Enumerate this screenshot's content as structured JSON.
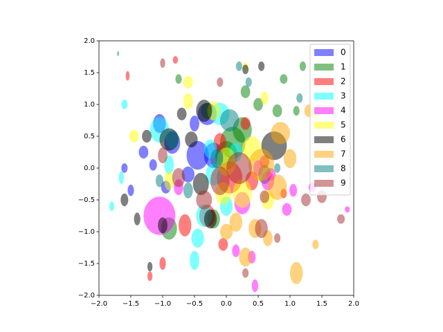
{
  "chart_data": {
    "type": "ellipse-scatter",
    "xlim": [
      -2,
      2
    ],
    "ylim": [
      -2,
      2
    ],
    "xticks": [
      {
        "value": -2,
        "label": "−2.0"
      },
      {
        "value": -1.5,
        "label": "−1.5"
      },
      {
        "value": -1,
        "label": "−1.0"
      },
      {
        "value": -0.5,
        "label": "−0.5"
      },
      {
        "value": 0,
        "label": "0.0"
      },
      {
        "value": 0.5,
        "label": "0.5"
      },
      {
        "value": 1,
        "label": "1.0"
      },
      {
        "value": 1.5,
        "label": "1.5"
      },
      {
        "value": 2,
        "label": "2.0"
      }
    ],
    "yticks": [
      {
        "value": -2,
        "label": "−2.0"
      },
      {
        "value": -1.5,
        "label": "−1.5"
      },
      {
        "value": -1,
        "label": "−1.0"
      },
      {
        "value": -0.5,
        "label": "−0.5"
      },
      {
        "value": 0,
        "label": "0.0"
      },
      {
        "value": 0.5,
        "label": "0.5"
      },
      {
        "value": 1,
        "label": "1.0"
      },
      {
        "value": 1.5,
        "label": "1.5"
      },
      {
        "value": 2,
        "label": "2.0"
      }
    ],
    "alpha": 0.5,
    "legend": "upper right",
    "series": [
      {
        "name": "0",
        "color": "#0000ff",
        "x": [
          -0.45,
          -0.3,
          -0.85,
          -1.05,
          -1.3,
          -1.6,
          -0.6,
          -1.5,
          -0.2,
          -0.5,
          -1.15,
          -0.95
        ],
        "values": [
          0.2,
          0.85,
          0.4,
          0.7,
          0.25,
          0.0,
          -0.1,
          -0.35,
          0.2,
          0.7,
          0.05,
          -0.3
        ],
        "width": [
          0.35,
          0.3,
          0.25,
          0.2,
          0.15,
          0.1,
          0.2,
          0.1,
          0.3,
          0.15,
          0.12,
          0.15
        ],
        "height": [
          0.45,
          0.35,
          0.35,
          0.3,
          0.2,
          0.15,
          0.25,
          0.18,
          0.4,
          0.25,
          0.18,
          0.2
        ]
      },
      {
        "name": "1",
        "color": "#008000",
        "x": [
          0.1,
          0.25,
          0.0,
          -0.3,
          0.5,
          0.8,
          0.9,
          1.1,
          1.2,
          -0.9,
          0.3,
          -0.2,
          0.6,
          -0.75
        ],
        "values": [
          0.4,
          0.6,
          0.2,
          0.9,
          1.0,
          0.9,
          1.4,
          0.9,
          1.6,
          -0.95,
          1.2,
          -0.8,
          -0.1,
          1.4
        ],
        "width": [
          0.4,
          0.3,
          0.35,
          0.2,
          0.15,
          0.15,
          0.12,
          0.1,
          0.1,
          0.25,
          0.15,
          0.2,
          0.2,
          0.1
        ],
        "height": [
          0.5,
          0.4,
          0.45,
          0.25,
          0.2,
          0.2,
          0.15,
          0.15,
          0.15,
          0.35,
          0.2,
          0.3,
          0.3,
          0.15
        ]
      },
      {
        "name": "2",
        "color": "#ff0000",
        "x": [
          0.05,
          -0.3,
          0.4,
          -0.65,
          -0.05,
          0.3,
          -1.0,
          -0.1,
          0.6,
          -1.2,
          0.9,
          -0.8,
          -1.55
        ],
        "values": [
          -0.15,
          -0.75,
          -0.2,
          -0.9,
          -1.2,
          0.7,
          -1.5,
          0.4,
          0.1,
          -1.7,
          -0.4,
          1.7,
          1.45
        ],
        "width": [
          0.4,
          0.25,
          0.2,
          0.2,
          0.15,
          0.15,
          0.1,
          0.2,
          0.15,
          0.08,
          0.1,
          0.08,
          0.06
        ],
        "height": [
          0.5,
          0.35,
          0.3,
          0.35,
          0.2,
          0.2,
          0.2,
          0.3,
          0.2,
          0.15,
          0.15,
          0.12,
          0.15
        ]
      },
      {
        "name": "3",
        "color": "#00ffff",
        "x": [
          -0.1,
          -0.35,
          -1.05,
          -0.2,
          0.0,
          -0.5,
          -1.6,
          -0.45,
          -1.8,
          -0.9,
          -1.65,
          0.15,
          -0.25
        ],
        "values": [
          0.85,
          -0.75,
          0.6,
          -0.1,
          -0.6,
          -1.45,
          1.0,
          -1.1,
          -0.6,
          0.05,
          -0.15,
          0.25,
          0.3
        ],
        "width": [
          0.3,
          0.25,
          0.3,
          0.25,
          0.2,
          0.15,
          0.1,
          0.2,
          0.08,
          0.15,
          0.08,
          0.2,
          0.2
        ],
        "height": [
          0.35,
          0.35,
          0.4,
          0.35,
          0.3,
          0.3,
          0.15,
          0.3,
          0.15,
          0.3,
          0.2,
          0.3,
          0.3
        ]
      },
      {
        "name": "4",
        "color": "#ff00ff",
        "x": [
          -1.05,
          0.65,
          0.25,
          0.4,
          0.95,
          1.35,
          0.45,
          0.7,
          1.9,
          0.5,
          -0.75,
          0.15,
          1.05
        ],
        "values": [
          -0.75,
          -0.2,
          -0.55,
          -1.4,
          -0.65,
          -0.3,
          -1.85,
          -0.1,
          -0.65,
          0.0,
          -0.3,
          -1.3,
          -0.35
        ],
        "width": [
          0.5,
          0.2,
          0.25,
          0.12,
          0.15,
          0.12,
          0.1,
          0.15,
          0.08,
          0.15,
          0.15,
          0.12,
          0.12
        ],
        "height": [
          0.6,
          0.3,
          0.35,
          0.2,
          0.2,
          0.15,
          0.2,
          0.2,
          0.1,
          0.25,
          0.25,
          0.2,
          0.2
        ]
      },
      {
        "name": "5",
        "color": "#ffff00",
        "x": [
          0.0,
          0.4,
          -0.2,
          -0.6,
          1.4,
          -1.45,
          0.25,
          -0.9,
          0.6,
          -0.05,
          0.3,
          -0.6,
          0.65
        ],
        "values": [
          0.1,
          0.3,
          0.9,
          1.35,
          0.85,
          0.5,
          -0.4,
          -0.2,
          1.1,
          -0.4,
          1.6,
          1.05,
          -0.5
        ],
        "width": [
          0.3,
          0.3,
          0.2,
          0.15,
          0.12,
          0.15,
          0.3,
          0.15,
          0.12,
          0.25,
          0.08,
          0.15,
          0.2
        ],
        "height": [
          0.45,
          0.4,
          0.3,
          0.2,
          0.2,
          0.2,
          0.45,
          0.3,
          0.2,
          0.35,
          0.12,
          0.25,
          0.3
        ]
      },
      {
        "name": "6",
        "color": "#000000",
        "x": [
          -0.9,
          -0.4,
          -0.35,
          0.75,
          -0.7,
          -1.6,
          -1.25,
          -1.0,
          -0.25,
          -1.4,
          0.55,
          -0.55,
          -1.2,
          0.3
        ],
        "values": [
          0.45,
          -0.25,
          0.9,
          0.35,
          0.85,
          -0.5,
          0.5,
          -0.9,
          -0.8,
          -0.8,
          1.6,
          0.45,
          -1.55,
          1.55
        ],
        "width": [
          0.3,
          0.25,
          0.25,
          0.4,
          0.15,
          0.12,
          0.15,
          0.15,
          0.2,
          0.1,
          0.1,
          0.2,
          0.08,
          0.1
        ],
        "height": [
          0.35,
          0.35,
          0.35,
          0.45,
          0.2,
          0.2,
          0.2,
          0.25,
          0.3,
          0.2,
          0.15,
          0.25,
          0.15,
          0.15
        ]
      },
      {
        "name": "7",
        "color": "#ffa500",
        "x": [
          0.55,
          0.8,
          0.3,
          1.1,
          0.85,
          0.45,
          1.3,
          0.15,
          1.4,
          0.0,
          0.65,
          1.0
        ],
        "values": [
          0.05,
          -0.3,
          -1.4,
          -1.65,
          0.55,
          -0.95,
          0.9,
          -0.85,
          -1.2,
          -1.0,
          -1.1,
          0.15
        ],
        "width": [
          0.4,
          0.3,
          0.2,
          0.2,
          0.3,
          0.2,
          0.15,
          0.2,
          0.1,
          0.2,
          0.15,
          0.2
        ],
        "height": [
          0.5,
          0.4,
          0.3,
          0.35,
          0.35,
          0.3,
          0.2,
          0.3,
          0.15,
          0.25,
          0.25,
          0.3
        ]
      },
      {
        "name": "8",
        "color": "#008080",
        "x": [
          0.05,
          -0.85,
          -1.7,
          0.2,
          -0.15,
          1.15,
          0.35,
          -1.05,
          -0.6,
          0.8
        ],
        "values": [
          0.75,
          0.45,
          1.8,
          1.6,
          0.15,
          1.1,
          1.35,
          -0.2,
          -0.35,
          0.0
        ],
        "width": [
          0.3,
          0.2,
          0.03,
          0.1,
          0.2,
          0.1,
          0.1,
          0.12,
          0.15,
          0.1
        ],
        "height": [
          0.35,
          0.3,
          0.08,
          0.15,
          0.3,
          0.15,
          0.15,
          0.2,
          0.25,
          0.15
        ]
      },
      {
        "name": "9",
        "color": "#a52a2a",
        "x": [
          0.2,
          -0.1,
          0.55,
          -0.75,
          -0.35,
          0.6,
          1.25,
          0.3,
          -1.0,
          1.8,
          -0.1,
          0.8,
          -1.0,
          1.5
        ],
        "values": [
          0.0,
          -0.2,
          -0.95,
          -0.15,
          -0.5,
          -0.45,
          -0.5,
          -1.65,
          0.2,
          -0.8,
          1.35,
          -1.1,
          1.65,
          -0.45
        ],
        "width": [
          0.4,
          0.3,
          0.2,
          0.2,
          0.25,
          0.15,
          0.15,
          0.1,
          0.15,
          0.12,
          0.1,
          0.1,
          0.08,
          0.15
        ],
        "height": [
          0.5,
          0.45,
          0.3,
          0.3,
          0.3,
          0.2,
          0.2,
          0.15,
          0.25,
          0.15,
          0.15,
          0.15,
          0.15,
          0.2
        ]
      }
    ]
  }
}
